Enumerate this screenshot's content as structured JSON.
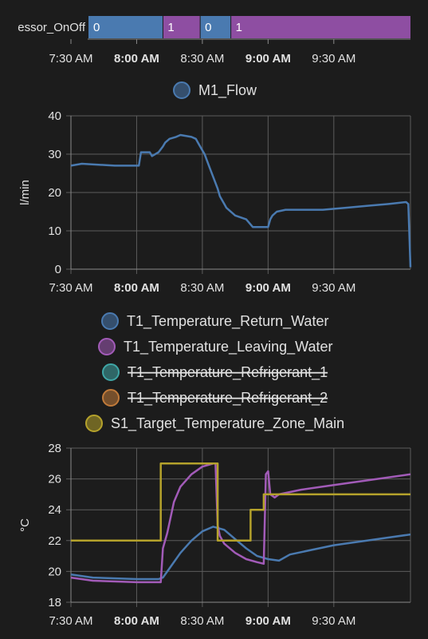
{
  "timeline": {
    "label": "essor_OnOff",
    "segments": [
      {
        "value": "0",
        "start": "7:20",
        "end": "8:12",
        "color": "#4a7ab0"
      },
      {
        "value": "1",
        "start": "8:12",
        "end": "8:29",
        "color": "#8e4ea2"
      },
      {
        "value": "0",
        "start": "8:29",
        "end": "8:43",
        "color": "#4a7ab0"
      },
      {
        "value": "1",
        "start": "8:43",
        "end": "10:05",
        "color": "#8e4ea2"
      }
    ],
    "x_ticks": [
      {
        "label": "7:30 AM",
        "t": "7:30",
        "bold": false
      },
      {
        "label": "8:00 AM",
        "t": "8:00",
        "bold": true
      },
      {
        "label": "8:30 AM",
        "t": "8:30",
        "bold": false
      },
      {
        "label": "9:00 AM",
        "t": "9:00",
        "bold": true
      },
      {
        "label": "9:30 AM",
        "t": "9:30",
        "bold": false
      }
    ]
  },
  "chart_data": [
    {
      "type": "line",
      "ylabel": "l/min",
      "ylim": [
        0,
        40
      ],
      "y_ticks": [
        0,
        10,
        20,
        30,
        40
      ],
      "xlim": [
        "7:24",
        "10:05"
      ],
      "x_ticks": [
        {
          "label": "7:30 AM",
          "t": "7:30",
          "bold": false
        },
        {
          "label": "8:00 AM",
          "t": "8:00",
          "bold": true
        },
        {
          "label": "8:30 AM",
          "t": "8:30",
          "bold": false
        },
        {
          "label": "9:00 AM",
          "t": "9:00",
          "bold": true
        },
        {
          "label": "9:30 AM",
          "t": "9:30",
          "bold": false
        }
      ],
      "grid": true,
      "legend_position": "top",
      "series": [
        {
          "name": "M1_Flow",
          "color": "#4a7ab0",
          "hidden": false,
          "x": [
            "7:24",
            "7:35",
            "7:50",
            "8:01",
            "8:02",
            "8:06",
            "8:07",
            "8:10",
            "8:12",
            "8:13",
            "8:15",
            "8:18",
            "8:20",
            "8:25",
            "8:27",
            "8:28",
            "8:30",
            "8:31",
            "8:33",
            "8:35",
            "8:37",
            "8:38",
            "8:40",
            "8:41",
            "8:45",
            "8:50",
            "8:53",
            "8:55",
            "9:00",
            "9:01",
            "9:02",
            "9:04",
            "9:08",
            "9:15",
            "9:25",
            "9:35",
            "9:45",
            "9:55",
            "10:03",
            "10:04",
            "10:05"
          ],
          "y": [
            27,
            27.5,
            27,
            27,
            30.5,
            30.5,
            29.5,
            30.5,
            32,
            33,
            34,
            34.5,
            35,
            34.5,
            34,
            33,
            31,
            30,
            27,
            24,
            21,
            19,
            17,
            16,
            14,
            13,
            11,
            11,
            11,
            13,
            14,
            15,
            15.5,
            15.5,
            15.5,
            16,
            16.5,
            17,
            17.5,
            17,
            0.5
          ]
        }
      ]
    },
    {
      "type": "line",
      "ylabel": "°C",
      "ylim": [
        18,
        28
      ],
      "y_ticks": [
        18,
        20,
        22,
        24,
        26,
        28
      ],
      "xlim": [
        "7:24",
        "10:05"
      ],
      "x_ticks": [
        {
          "label": "7:30 AM",
          "t": "7:30",
          "bold": false
        },
        {
          "label": "8:00 AM",
          "t": "8:00",
          "bold": true
        },
        {
          "label": "8:30 AM",
          "t": "8:30",
          "bold": false
        },
        {
          "label": "9:00 AM",
          "t": "9:00",
          "bold": true
        },
        {
          "label": "9:30 AM",
          "t": "9:30",
          "bold": false
        }
      ],
      "grid": true,
      "legend_position": "top",
      "series": [
        {
          "name": "T1_Temperature_Return_Water",
          "color": "#4a7ab0",
          "hidden": false,
          "x": [
            "7:24",
            "7:40",
            "8:00",
            "8:10",
            "8:12",
            "8:15",
            "8:20",
            "8:25",
            "8:30",
            "8:35",
            "8:40",
            "8:45",
            "8:50",
            "8:55",
            "9:00",
            "9:05",
            "9:10",
            "9:20",
            "9:30",
            "9:40",
            "9:50",
            "10:05"
          ],
          "y": [
            19.8,
            19.6,
            19.5,
            19.5,
            19.6,
            20.2,
            21.2,
            22.0,
            22.6,
            22.9,
            22.7,
            22.1,
            21.5,
            21.0,
            20.8,
            20.7,
            21.1,
            21.4,
            21.7,
            21.9,
            22.1,
            22.4
          ]
        },
        {
          "name": "T1_Temperature_Leaving_Water",
          "color": "#a25bb8",
          "hidden": false,
          "x": [
            "7:24",
            "7:40",
            "8:00",
            "8:11",
            "8:12",
            "8:14",
            "8:17",
            "8:20",
            "8:25",
            "8:30",
            "8:35",
            "8:36",
            "8:37",
            "8:38",
            "8:40",
            "8:45",
            "8:50",
            "8:55",
            "8:58",
            "8:59",
            "9:00",
            "9:01",
            "9:03",
            "9:05",
            "9:15",
            "9:30",
            "9:45",
            "10:05"
          ],
          "y": [
            19.6,
            19.4,
            19.3,
            19.3,
            21.5,
            22.5,
            24.5,
            25.5,
            26.3,
            26.8,
            27.0,
            27.0,
            23.0,
            22.3,
            21.8,
            21.2,
            20.8,
            20.6,
            20.5,
            26.3,
            26.5,
            25.0,
            24.8,
            25.0,
            25.3,
            25.6,
            25.9,
            26.3
          ]
        },
        {
          "name": "T1_Temperature_Refrigerant_1",
          "color": "#3fa6a6",
          "hidden": true,
          "x": [],
          "y": []
        },
        {
          "name": "T1_Temperature_Refrigerant_2",
          "color": "#c07a3a",
          "hidden": true,
          "x": [],
          "y": []
        },
        {
          "name": "S1_Target_Temperature_Zone_Main",
          "color": "#b5a22b",
          "hidden": false,
          "x": [
            "7:24",
            "8:11",
            "8:11",
            "8:37",
            "8:37",
            "8:52",
            "8:52",
            "8:58",
            "8:58",
            "10:05"
          ],
          "y": [
            22,
            22,
            27,
            27,
            22,
            22,
            24,
            24,
            25,
            25
          ]
        }
      ]
    }
  ]
}
